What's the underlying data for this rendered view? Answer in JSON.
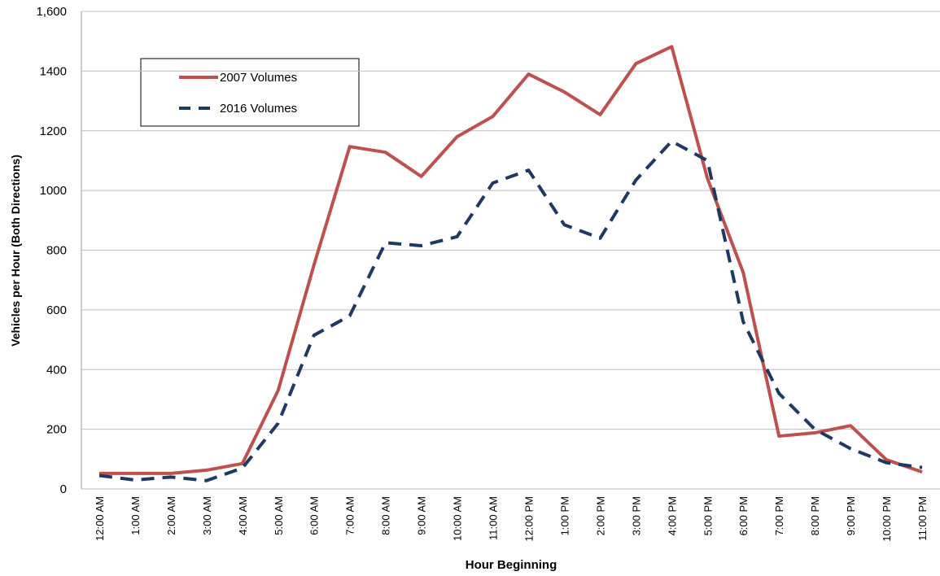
{
  "chart_data": {
    "type": "line",
    "x_label": "Hour Beginning",
    "y_label": "Vehicles per Hour (Both Directions)",
    "categories": [
      "12:00 AM",
      "1:00 AM",
      "2:00 AM",
      "3:00 AM",
      "4:00 AM",
      "5:00 AM",
      "6:00 AM",
      "7:00 AM",
      "8:00 AM",
      "9:00 AM",
      "10:00 AM",
      "11:00 AM",
      "12:00 PM",
      "1:00 PM",
      "2:00 PM",
      "3:00 PM",
      "4:00 PM",
      "5:00 PM",
      "6:00 PM",
      "7:00 PM",
      "8:00 PM",
      "9:00 PM",
      "10:00 PM",
      "11:00 PM"
    ],
    "series": [
      {
        "name": "2007 Volumes",
        "color": "#c0504d",
        "dashed": false,
        "values": [
          52,
          52,
          52,
          63,
          85,
          330,
          750,
          1147,
          1128,
          1047,
          1180,
          1248,
          1390,
          1330,
          1254,
          1425,
          1482,
          1040,
          725,
          177,
          188,
          212,
          98,
          57
        ]
      },
      {
        "name": "2016 Volumes",
        "color": "#1f3864",
        "dashed": true,
        "values": [
          45,
          30,
          40,
          28,
          70,
          220,
          515,
          580,
          825,
          815,
          845,
          1025,
          1068,
          885,
          840,
          1035,
          1165,
          1100,
          560,
          320,
          200,
          135,
          88,
          72
        ]
      }
    ],
    "ylim": [
      0,
      1600
    ],
    "yticks": [
      0,
      200,
      400,
      600,
      800,
      1000,
      1200,
      1400,
      {
        "value": 1600,
        "label": "1,600"
      }
    ],
    "grid": true
  }
}
